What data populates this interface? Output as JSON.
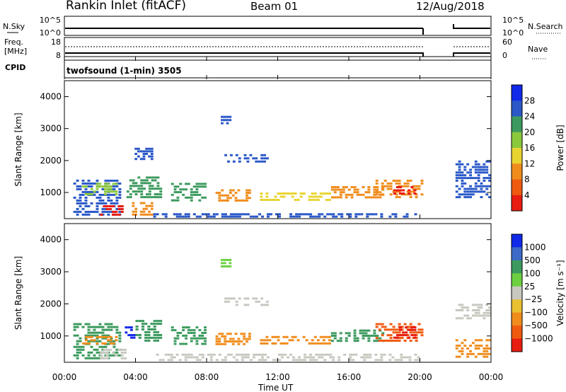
{
  "header": {
    "station": "Rankin Inlet (fitACF)",
    "beam": "Beam 01",
    "date": "12/Aug/2018"
  },
  "nsky_panel": {
    "left_label": "N.Sky",
    "right_label": "N.Search",
    "left_ticks": [
      "10^5",
      "10^0"
    ],
    "right_ticks": [
      "10^5",
      "10^0"
    ]
  },
  "freq_panel": {
    "left_label_1": "Freq.",
    "left_label_2": "[MHz]",
    "right_label": "Nave",
    "left_ticks": [
      "18",
      "8"
    ],
    "right_ticks": [
      "60",
      "0"
    ]
  },
  "cpid_panel": {
    "left_label": "CPID",
    "program": "twofsound (1-min) 3505"
  },
  "time_axis": {
    "ticks": [
      "00:00",
      "04:00",
      "08:00",
      "12:00",
      "16:00",
      "20:00",
      "00:00"
    ],
    "label": "Time UT"
  },
  "colors": {
    "blue": "#2a58c8",
    "green": "#3c9a5e",
    "yellow": "#e8d430",
    "orange": "#f08c1c",
    "red": "#e81c10",
    "gray": "#c8c8c0",
    "light_green": "#6cd040"
  },
  "chart_data": [
    {
      "type": "heatmap",
      "ylabel": "Slant Range [km]",
      "xlim_hours": [
        0,
        24
      ],
      "ylim_km": [
        180,
        4500
      ],
      "yticks": [
        1000,
        2000,
        3000,
        4000
      ],
      "colorbar": {
        "label": "Power [dB]",
        "ticks": [
          "4",
          "8",
          "12",
          "16",
          "20",
          "24",
          "28"
        ],
        "colors": [
          "#1028e8",
          "#2a58c8",
          "#3c9a5e",
          "#8cc83c",
          "#e8d430",
          "#f08c1c",
          "#f05a10",
          "#e81c10"
        ]
      },
      "regions": [
        {
          "t0": 0.5,
          "t1": 3.2,
          "r0": 250,
          "r1": 1400,
          "color": "#2a58c8"
        },
        {
          "t0": 1.0,
          "t1": 3.0,
          "r0": 900,
          "r1": 1300,
          "color": "#8cc83c"
        },
        {
          "t0": 2.0,
          "t1": 3.5,
          "r0": 250,
          "r1": 600,
          "color": "#e81c10"
        },
        {
          "t0": 3.5,
          "t1": 5.5,
          "r0": 800,
          "r1": 1500,
          "color": "#3c9a5e"
        },
        {
          "t0": 3.8,
          "t1": 5.0,
          "r0": 250,
          "r1": 700,
          "color": "#f08c1c"
        },
        {
          "t0": 3.8,
          "t1": 5.0,
          "r0": 2000,
          "r1": 2400,
          "color": "#2a58c8"
        },
        {
          "t0": 6.0,
          "t1": 8.0,
          "r0": 700,
          "r1": 1300,
          "color": "#3c9a5e"
        },
        {
          "t0": 9.0,
          "t1": 11.5,
          "r0": 1900,
          "r1": 2200,
          "color": "#2a58c8"
        },
        {
          "t0": 8.5,
          "t1": 10.5,
          "r0": 700,
          "r1": 1100,
          "color": "#f08c1c"
        },
        {
          "t0": 8.8,
          "t1": 9.4,
          "r0": 3100,
          "r1": 3400,
          "color": "#2a58c8"
        },
        {
          "t0": 11.0,
          "t1": 15.0,
          "r0": 700,
          "r1": 1000,
          "color": "#e8d430"
        },
        {
          "t0": 15.0,
          "t1": 18.0,
          "r0": 800,
          "r1": 1200,
          "color": "#f08c1c"
        },
        {
          "t0": 17.5,
          "t1": 20.2,
          "r0": 800,
          "r1": 1400,
          "color": "#f08c1c"
        },
        {
          "t0": 18.5,
          "t1": 19.8,
          "r0": 900,
          "r1": 1200,
          "color": "#e81c10"
        },
        {
          "t0": 22.0,
          "t1": 24.0,
          "r0": 800,
          "r1": 2000,
          "color": "#2a58c8"
        },
        {
          "t0": 5.0,
          "t1": 20.0,
          "r0": 200,
          "r1": 350,
          "color": "#2a58c8"
        }
      ]
    },
    {
      "type": "heatmap",
      "ylabel": "Slant Range [km]",
      "xlim_hours": [
        0,
        24
      ],
      "ylim_km": [
        180,
        4500
      ],
      "yticks": [
        1000,
        2000,
        3000,
        4000
      ],
      "colorbar": {
        "label": "Velocity [m s⁻¹]",
        "ticks": [
          "1000",
          "500",
          "100",
          "25",
          "−25",
          "−100",
          "−500",
          "−1000"
        ],
        "colors": [
          "#1028e8",
          "#3c6ac8",
          "#3c9a5e",
          "#6cd040",
          "#c8c8c0",
          "#e8c030",
          "#f08c1c",
          "#f05a10",
          "#e81c10"
        ]
      },
      "regions": [
        {
          "t0": 0.5,
          "t1": 3.2,
          "r0": 250,
          "r1": 1400,
          "color": "#3c9a5e"
        },
        {
          "t0": 1.0,
          "t1": 3.0,
          "r0": 700,
          "r1": 1000,
          "color": "#f08c1c"
        },
        {
          "t0": 2.0,
          "t1": 3.5,
          "r0": 250,
          "r1": 600,
          "color": "#c8c8c0"
        },
        {
          "t0": 3.4,
          "t1": 4.0,
          "r0": 900,
          "r1": 1300,
          "color": "#1028e8"
        },
        {
          "t0": 4.0,
          "t1": 5.5,
          "r0": 800,
          "r1": 1500,
          "color": "#3c9a5e"
        },
        {
          "t0": 6.0,
          "t1": 8.0,
          "r0": 700,
          "r1": 1300,
          "color": "#3c9a5e"
        },
        {
          "t0": 8.5,
          "t1": 10.5,
          "r0": 700,
          "r1": 1100,
          "color": "#f08c1c"
        },
        {
          "t0": 9.0,
          "t1": 11.5,
          "r0": 1900,
          "r1": 2200,
          "color": "#c8c8c0"
        },
        {
          "t0": 8.8,
          "t1": 9.4,
          "r0": 3100,
          "r1": 3400,
          "color": "#6cd040"
        },
        {
          "t0": 11.0,
          "t1": 15.0,
          "r0": 700,
          "r1": 1000,
          "color": "#f08c1c"
        },
        {
          "t0": 15.0,
          "t1": 18.0,
          "r0": 800,
          "r1": 1200,
          "color": "#3c9a5e"
        },
        {
          "t0": 17.5,
          "t1": 20.2,
          "r0": 800,
          "r1": 1400,
          "color": "#f05a10"
        },
        {
          "t0": 18.5,
          "t1": 19.8,
          "r0": 900,
          "r1": 1300,
          "color": "#e81c10"
        },
        {
          "t0": 22.0,
          "t1": 24.0,
          "r0": 1500,
          "r1": 2000,
          "color": "#c8c8c0"
        },
        {
          "t0": 22.0,
          "t1": 24.0,
          "r0": 300,
          "r1": 900,
          "color": "#f08c1c"
        },
        {
          "t0": 5.0,
          "t1": 20.0,
          "r0": 200,
          "r1": 450,
          "color": "#c8c8c0"
        }
      ]
    }
  ]
}
